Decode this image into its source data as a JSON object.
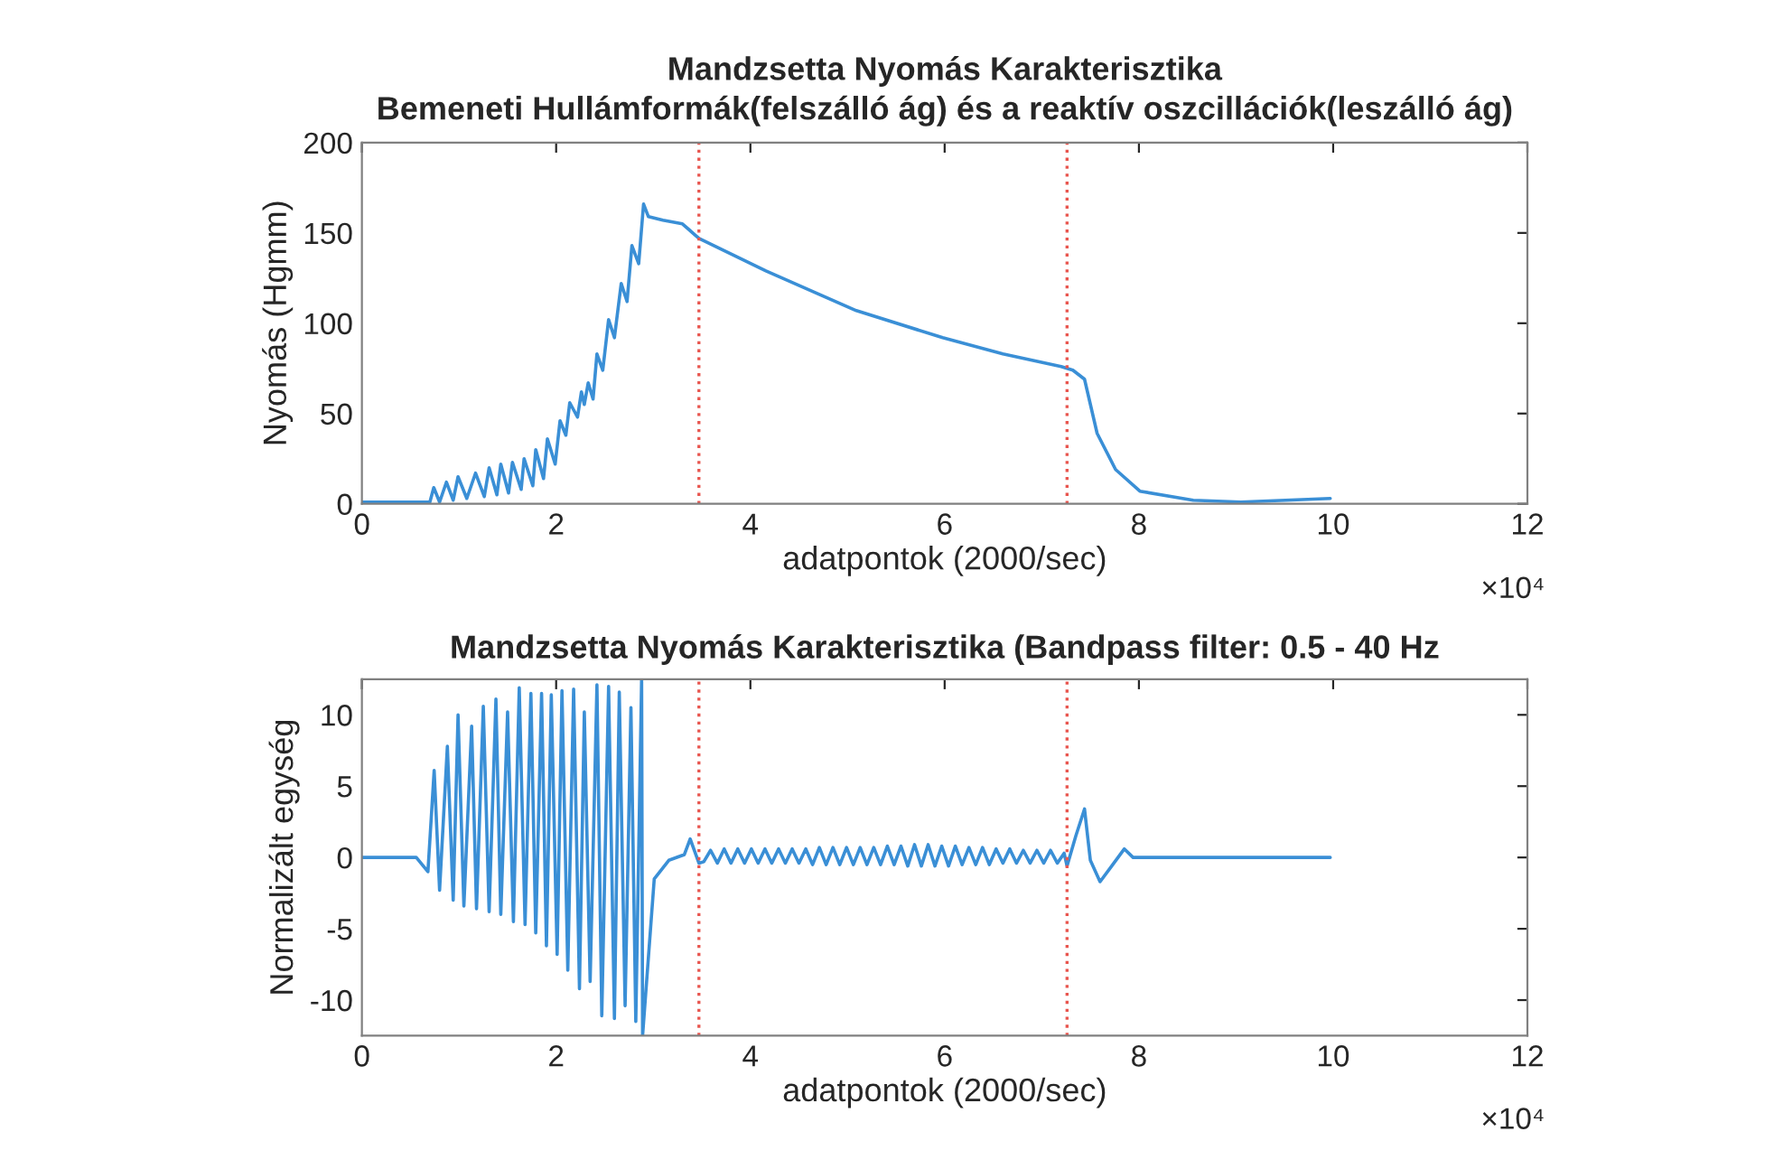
{
  "chart_data": [
    {
      "type": "line",
      "title": "Mandzsetta Nyomás Karakterisztika",
      "subtitle": "Bemeneti Hullámformák(felszálló ág) és a reaktív oszcillációk(leszálló ág)",
      "xlabel": "adatpontok (2000/sec)",
      "ylabel": "Nyomás (Hgmm)",
      "xlim": [
        0,
        12
      ],
      "ylim": [
        0,
        200
      ],
      "xticks": [
        0,
        2,
        4,
        6,
        8,
        10,
        12
      ],
      "yticks": [
        0,
        50,
        100,
        150,
        200
      ],
      "annotations": [
        "×10⁴"
      ],
      "ref_lines": [
        {
          "axis": "x",
          "value": 3.47,
          "color": "#e8554e",
          "line_style": "dotted"
        },
        {
          "axis": "x",
          "value": 7.26,
          "color": "#e8554e",
          "line_style": "dotted"
        }
      ],
      "series": [
        {
          "color": "#3a8fd6",
          "x": [
            0,
            0.7,
            0.74,
            0.8,
            0.87,
            0.94,
            0.99,
            1.08,
            1.17,
            1.26,
            1.31,
            1.39,
            1.43,
            1.51,
            1.55,
            1.64,
            1.67,
            1.76,
            1.79,
            1.87,
            1.91,
            1.99,
            2.04,
            2.1,
            2.14,
            2.22,
            2.26,
            2.29,
            2.33,
            2.38,
            2.42,
            2.48,
            2.54,
            2.6,
            2.67,
            2.73,
            2.78,
            2.85,
            2.9,
            2.95,
            3.1,
            3.3,
            3.47,
            4.16,
            5.09,
            5.98,
            6.6,
            7.2,
            7.32,
            7.44,
            7.57,
            7.76,
            8.01,
            8.56,
            9.05,
            9.97
          ],
          "values": [
            1,
            1,
            9,
            1,
            12,
            2,
            15,
            3,
            17,
            4,
            20,
            5,
            22,
            6,
            23,
            8,
            25,
            10,
            30,
            14,
            36,
            22,
            46,
            38,
            56,
            48,
            62,
            55,
            67,
            58,
            83,
            74,
            102,
            92,
            122,
            112,
            143,
            133,
            166,
            159,
            157,
            155,
            147,
            129,
            107,
            92,
            83,
            76,
            74,
            69,
            39,
            19,
            7,
            2,
            1,
            3
          ]
        }
      ]
    },
    {
      "type": "line",
      "title": "Mandzsetta Nyomás Karakterisztika (Bandpass filter: 0.5 - 40 Hz",
      "xlabel": "adatpontok (2000/sec)",
      "ylabel": "Normalizált egység",
      "xlim": [
        0,
        12
      ],
      "ylim": [
        -12.5,
        12.5
      ],
      "xticks": [
        0,
        2,
        4,
        6,
        8,
        10,
        12
      ],
      "yticks": [
        -10,
        -5,
        0,
        5,
        10
      ],
      "annotations": [
        "×10⁴"
      ],
      "ref_lines": [
        {
          "axis": "x",
          "value": 3.47,
          "color": "#e8554e",
          "line_style": "dotted"
        },
        {
          "axis": "x",
          "value": 7.26,
          "color": "#e8554e",
          "line_style": "dotted"
        }
      ],
      "series": [
        {
          "color": "#3a8fd6",
          "x": [
            0,
            0.56,
            0.68,
            0.744,
            0.8,
            0.88,
            0.94,
            0.99,
            1.05,
            1.13,
            1.18,
            1.25,
            1.31,
            1.38,
            1.43,
            1.5,
            1.56,
            1.62,
            1.68,
            1.74,
            1.79,
            1.85,
            1.9,
            1.95,
            2.01,
            2.06,
            2.12,
            2.18,
            2.24,
            2.29,
            2.35,
            2.42,
            2.47,
            2.54,
            2.6,
            2.65,
            2.71,
            2.77,
            2.82,
            2.88,
            2.89,
            3.01,
            3.16,
            3.32,
            3.38,
            3.47,
            3.52,
            3.59,
            3.66,
            3.73,
            3.8,
            3.87,
            3.94,
            4.01,
            4.08,
            4.15,
            4.22,
            4.29,
            4.36,
            4.43,
            4.5,
            4.57,
            4.64,
            4.71,
            4.78,
            4.85,
            4.92,
            4.99,
            5.06,
            5.13,
            5.2,
            5.27,
            5.34,
            5.41,
            5.48,
            5.55,
            5.62,
            5.69,
            5.76,
            5.83,
            5.9,
            5.97,
            6.04,
            6.11,
            6.18,
            6.25,
            6.32,
            6.39,
            6.46,
            6.53,
            6.6,
            6.67,
            6.74,
            6.81,
            6.88,
            6.95,
            7.02,
            7.09,
            7.16,
            7.23,
            7.26,
            7.35,
            7.44,
            7.5,
            7.6,
            7.72,
            7.85,
            7.94,
            9.97
          ],
          "values": [
            0,
            0,
            -1,
            6.1,
            -2.3,
            7.8,
            -3.0,
            10.0,
            -3.4,
            9.2,
            -3.6,
            10.6,
            -3.8,
            11.1,
            -4.0,
            10.2,
            -4.5,
            11.9,
            -4.7,
            11.5,
            -5.3,
            11.5,
            -6.2,
            11.4,
            -6.8,
            11.7,
            -7.9,
            11.8,
            -9.2,
            10.2,
            -8.7,
            12.1,
            -11.1,
            12.0,
            -11.3,
            11.6,
            -10.4,
            10.5,
            -11.5,
            12.5,
            -12.5,
            -1.5,
            -0.2,
            0.2,
            1.3,
            -0.4,
            -0.3,
            0.5,
            -0.4,
            0.6,
            -0.4,
            0.6,
            -0.4,
            0.6,
            -0.4,
            0.6,
            -0.4,
            0.6,
            -0.4,
            0.6,
            -0.4,
            0.6,
            -0.5,
            0.7,
            -0.5,
            0.7,
            -0.5,
            0.7,
            -0.5,
            0.7,
            -0.5,
            0.7,
            -0.5,
            0.8,
            -0.5,
            0.8,
            -0.6,
            0.9,
            -0.6,
            0.9,
            -0.6,
            0.8,
            -0.6,
            0.8,
            -0.5,
            0.7,
            -0.5,
            0.7,
            -0.5,
            0.6,
            -0.4,
            0.6,
            -0.4,
            0.5,
            -0.4,
            0.5,
            -0.4,
            0.5,
            -0.4,
            0.3,
            -0.6,
            1.5,
            3.4,
            -0.2,
            -1.7,
            -0.6,
            0.6,
            0,
            0
          ]
        }
      ]
    }
  ]
}
